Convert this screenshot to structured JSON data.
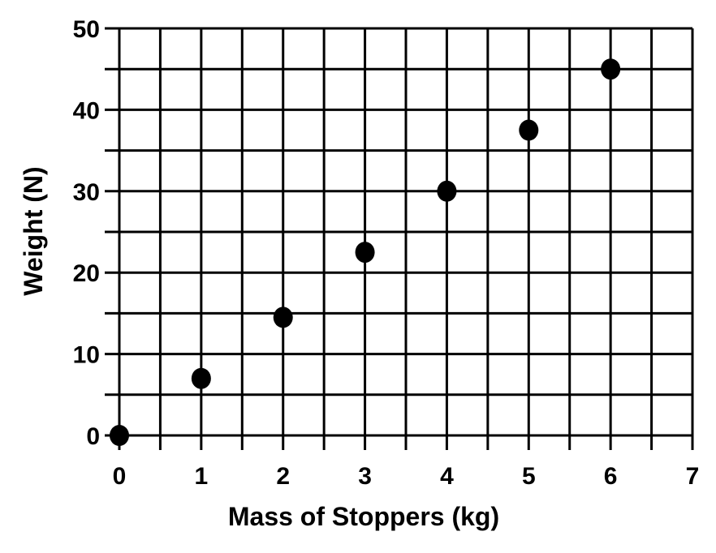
{
  "chart_data": {
    "type": "scatter",
    "title": "",
    "xlabel": "Mass of Stoppers (kg)",
    "ylabel": "Weight (N)",
    "xlim": [
      0,
      7
    ],
    "ylim": [
      0,
      50
    ],
    "x_ticks": [
      "0",
      "1",
      "2",
      "3",
      "4",
      "5",
      "6",
      "7"
    ],
    "y_ticks": [
      "0",
      "10",
      "20",
      "30",
      "40",
      "50"
    ],
    "grid": true,
    "series": [
      {
        "points": [
          {
            "x": 0,
            "y": 0
          },
          {
            "x": 1,
            "y": 7
          },
          {
            "x": 2,
            "y": 14.5
          },
          {
            "x": 3,
            "y": 22.5
          },
          {
            "x": 4,
            "y": 30
          },
          {
            "x": 5,
            "y": 37.5
          },
          {
            "x": 6,
            "y": 45
          }
        ]
      }
    ]
  },
  "colors": {
    "grid": "#000000",
    "marker": "#000000",
    "background": "#ffffff"
  }
}
